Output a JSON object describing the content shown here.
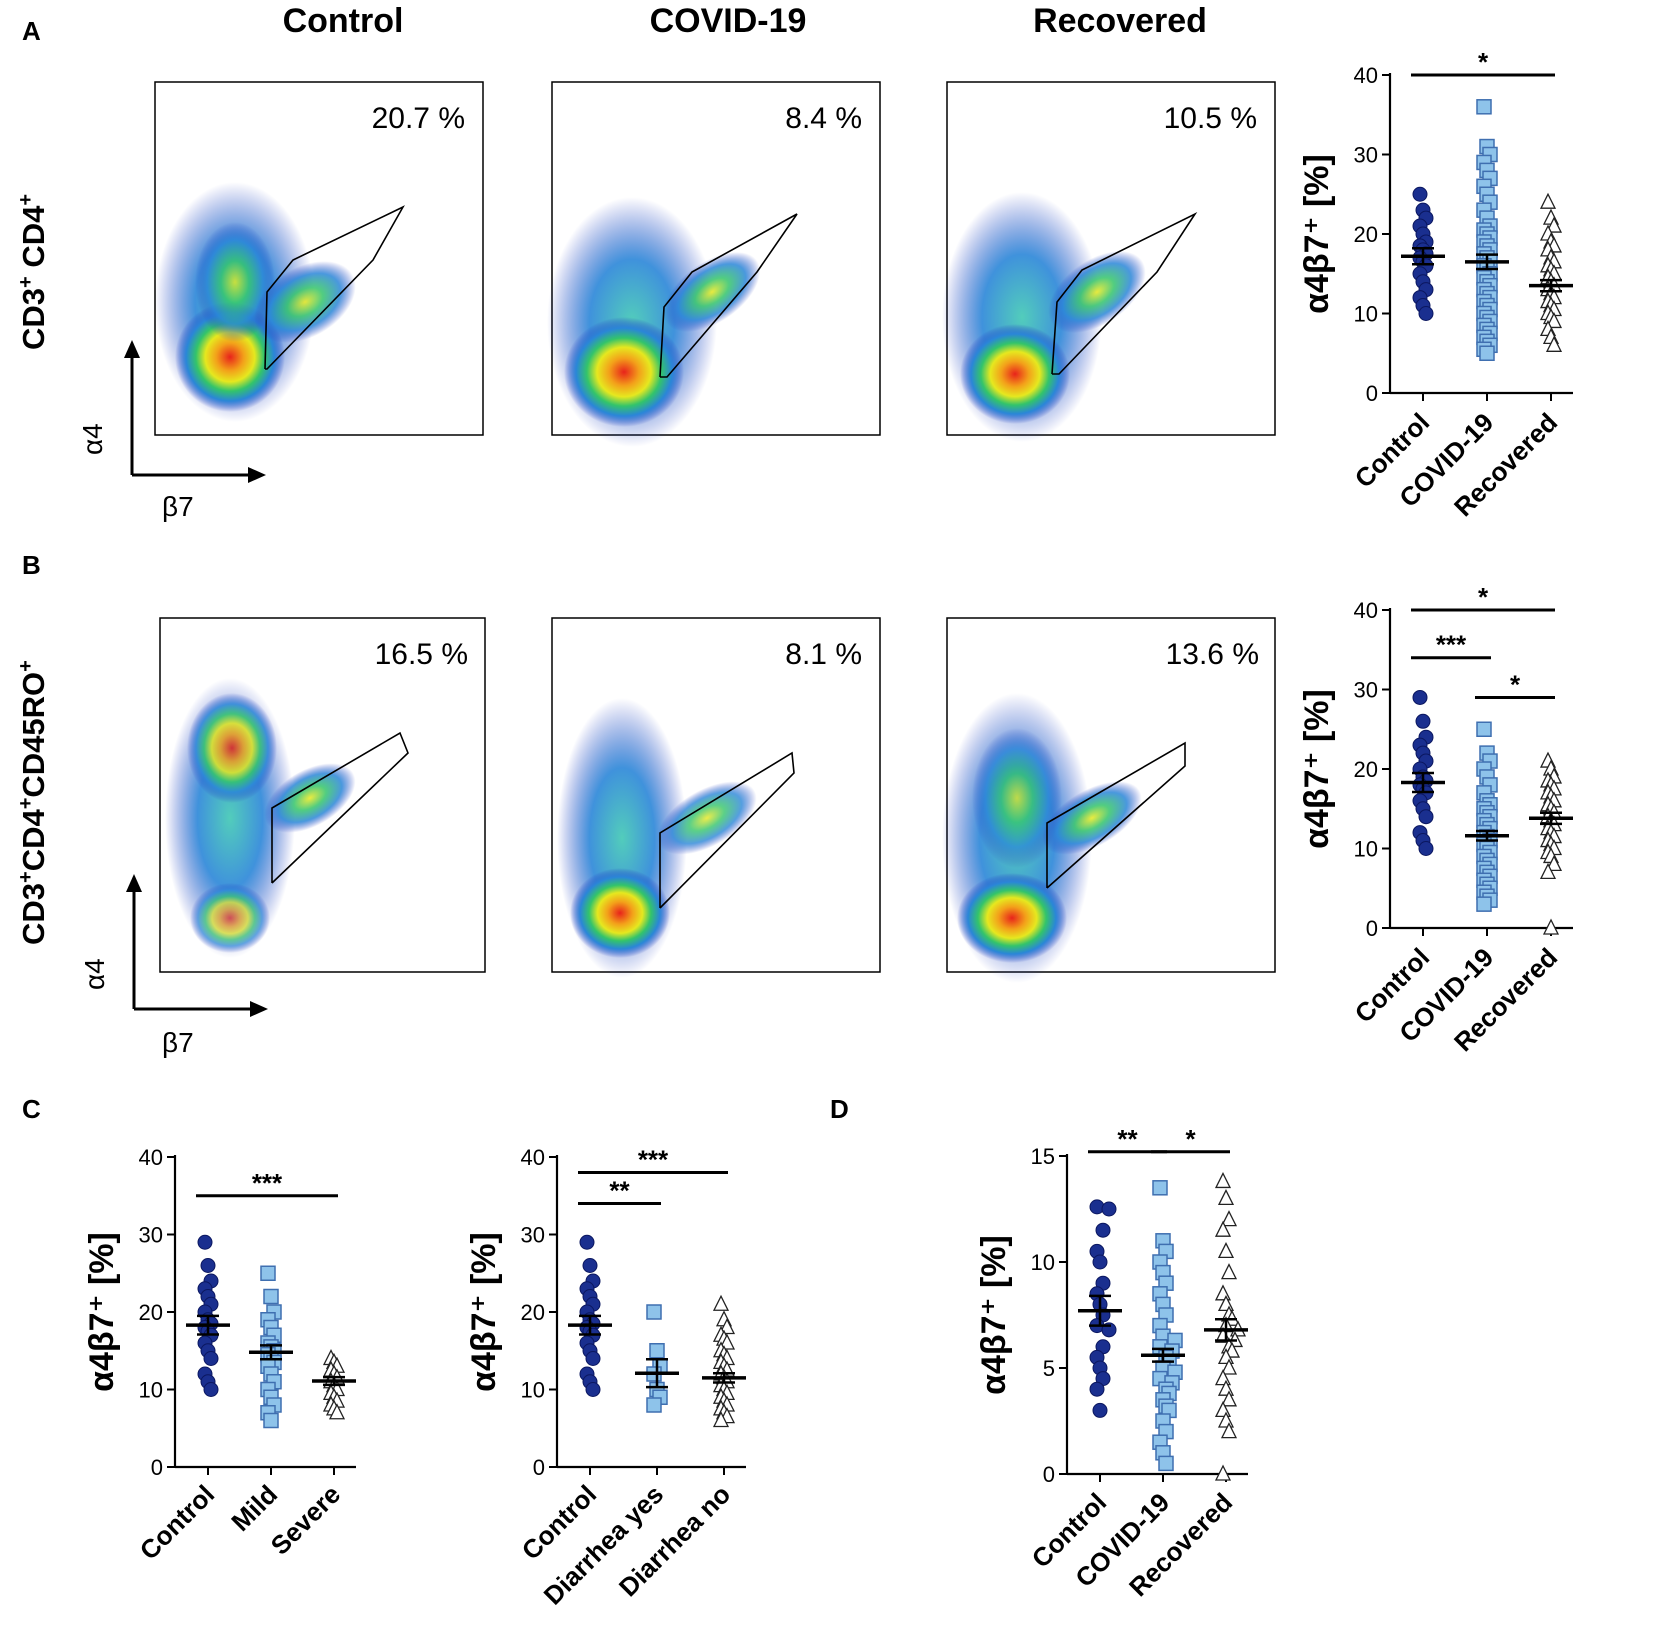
{
  "colors": {
    "control": "#1a2f8f",
    "covid": "#8ec3ea",
    "covid_border": "#3f6fb0",
    "recovered": "#ffffff",
    "axis": "#000000"
  },
  "column_headers": [
    "Control",
    "COVID-19",
    "Recovered"
  ],
  "flow_axis_labels": {
    "y": "α4",
    "x": "β7"
  },
  "panels": {
    "A": {
      "letter": "A",
      "row_label": "CD3",
      "row_label_sup1": "+",
      "row_label_mid": " CD4",
      "row_label_sup2": "+",
      "flow_percentages": [
        "20.7 %",
        "8.4 %",
        "10.5 %"
      ]
    },
    "B": {
      "letter": "B",
      "row_label": "CD3",
      "row_label_sup1": "+",
      "row_label_mid": "CD4",
      "row_label_sup2": "+",
      "row_label_end": "CD45RO",
      "row_label_sup3": "+",
      "flow_percentages": [
        "16.5 %",
        "8.1 %",
        "13.6 %"
      ]
    },
    "C": {
      "letter": "C"
    },
    "D": {
      "letter": "D"
    }
  },
  "chart_data": [
    {
      "id": "A",
      "type": "scatter",
      "ylabel": "α4β7⁺ [%]",
      "ylim": [
        0,
        40
      ],
      "yticks": [
        0,
        10,
        20,
        30,
        40
      ],
      "categories": [
        "Control",
        "COVID-19",
        "Recovered"
      ],
      "series": [
        {
          "name": "Control",
          "marker": "circle",
          "values": [
            25,
            23,
            22,
            21,
            20,
            19,
            18.5,
            18,
            17.5,
            17,
            16.5,
            16,
            15,
            14,
            13,
            12,
            11,
            10
          ],
          "mean": 17.2,
          "sem": 1.0
        },
        {
          "name": "COVID-19",
          "marker": "square",
          "values": [
            36,
            31,
            30,
            29,
            28,
            27,
            26,
            25,
            24,
            23,
            22,
            21,
            20.5,
            20,
            19.5,
            19,
            18.5,
            18,
            17.5,
            17,
            16.5,
            16,
            15.5,
            15,
            14.5,
            14,
            13.5,
            13,
            12.5,
            12,
            11.5,
            11,
            10.5,
            10,
            9.5,
            9,
            8.5,
            8,
            7.5,
            7,
            6.5,
            6,
            5.5,
            5
          ],
          "mean": 16.5,
          "sem": 0.9
        },
        {
          "name": "Recovered",
          "marker": "triangle",
          "values": [
            24,
            22,
            21,
            20,
            19,
            18.5,
            18,
            17,
            16.5,
            16,
            15.5,
            15,
            14.5,
            14,
            13.5,
            13,
            12.5,
            12,
            11.5,
            11,
            10.5,
            10,
            9.5,
            9,
            8,
            7,
            6
          ],
          "mean": 13.5,
          "sem": 0.7
        }
      ],
      "significance": [
        {
          "from": 0,
          "to": 2,
          "label": "*",
          "y": 40
        }
      ]
    },
    {
      "id": "B",
      "type": "scatter",
      "ylabel": "α4β7⁺ [%]",
      "ylim": [
        0,
        40
      ],
      "yticks": [
        0,
        10,
        20,
        30,
        40
      ],
      "categories": [
        "Control",
        "COVID-19",
        "Recovered"
      ],
      "series": [
        {
          "name": "Control",
          "marker": "circle",
          "values": [
            29,
            26,
            24,
            23,
            22,
            21,
            20,
            19,
            18.5,
            18,
            17.5,
            17,
            16,
            15,
            14,
            12,
            11,
            10
          ],
          "mean": 18.3,
          "sem": 1.2
        },
        {
          "name": "COVID-19",
          "marker": "square",
          "values": [
            25,
            22,
            21,
            20,
            19,
            18,
            17,
            16,
            15.5,
            15,
            14.5,
            14,
            13.5,
            13,
            12.5,
            12,
            11.5,
            11,
            10.5,
            10,
            9.5,
            9,
            8.5,
            8,
            7.5,
            7,
            6.5,
            6,
            5.5,
            5,
            4.5,
            4,
            3.5,
            3
          ],
          "mean": 11.6,
          "sem": 0.6
        },
        {
          "name": "Recovered",
          "marker": "triangle",
          "values": [
            21,
            20,
            19,
            18.5,
            18,
            17.5,
            17,
            16.5,
            16,
            15.5,
            15,
            14.5,
            14,
            13.5,
            13,
            12.5,
            12,
            11.5,
            11,
            10.5,
            10,
            9.5,
            9,
            8,
            7,
            0
          ],
          "mean": 13.8,
          "sem": 0.7
        }
      ],
      "significance": [
        {
          "from": 0,
          "to": 2,
          "label": "*",
          "y": 40
        },
        {
          "from": 0,
          "to": 1,
          "label": "***",
          "y": 34
        },
        {
          "from": 1,
          "to": 2,
          "label": "*",
          "y": 29
        }
      ]
    },
    {
      "id": "C1",
      "type": "scatter",
      "ylabel": "α4β7⁺ [%]",
      "ylim": [
        0,
        40
      ],
      "yticks": [
        0,
        10,
        20,
        30,
        40
      ],
      "categories": [
        "Control",
        "Mild",
        "Severe"
      ],
      "series": [
        {
          "name": "Control",
          "marker": "circle",
          "values": [
            29,
            26,
            24,
            23,
            22,
            21,
            20,
            19,
            18.5,
            18,
            17.5,
            17,
            16,
            15,
            14,
            12,
            11,
            10
          ],
          "mean": 18.3,
          "sem": 1.2
        },
        {
          "name": "Mild",
          "marker": "square",
          "values": [
            25,
            22,
            20,
            19,
            18,
            17,
            16,
            15.5,
            15,
            14.5,
            14,
            13.5,
            13,
            12,
            11,
            10,
            9,
            8,
            7,
            6
          ],
          "mean": 14.8,
          "sem": 0.9
        },
        {
          "name": "Severe",
          "marker": "triangle",
          "values": [
            14,
            13.5,
            13,
            12.5,
            12,
            11.5,
            11,
            10.5,
            10,
            9.5,
            9,
            8.5,
            8,
            7.5,
            7
          ],
          "mean": 11.1,
          "sem": 0.5
        }
      ],
      "significance": [
        {
          "from": 0,
          "to": 2,
          "label": "***",
          "y": 35
        }
      ]
    },
    {
      "id": "C2",
      "type": "scatter",
      "ylabel": "α4β7⁺ [%]",
      "ylim": [
        0,
        40
      ],
      "yticks": [
        0,
        10,
        20,
        30,
        40
      ],
      "categories": [
        "Control",
        "Diarrhea yes",
        "Diarrhea no"
      ],
      "series": [
        {
          "name": "Control",
          "marker": "circle",
          "values": [
            29,
            26,
            24,
            23,
            22,
            21,
            20,
            19,
            18.5,
            18,
            17.5,
            17,
            16,
            15,
            14,
            12,
            11,
            10
          ],
          "mean": 18.3,
          "sem": 1.2
        },
        {
          "name": "Diarrhea yes",
          "marker": "square",
          "values": [
            20,
            15,
            13,
            12,
            10,
            9,
            8
          ],
          "mean": 12.1,
          "sem": 1.8
        },
        {
          "name": "Diarrhea no",
          "marker": "triangle",
          "values": [
            21,
            19,
            18,
            17,
            16.5,
            16,
            15,
            14.5,
            14,
            13.5,
            13,
            12.5,
            12,
            11.5,
            11,
            10.5,
            10,
            9.5,
            9,
            8.5,
            8,
            7.5,
            7,
            6.5,
            6
          ],
          "mean": 11.5,
          "sem": 0.6
        }
      ],
      "significance": [
        {
          "from": 0,
          "to": 2,
          "label": "***",
          "y": 38
        },
        {
          "from": 0,
          "to": 1,
          "label": "**",
          "y": 34
        }
      ]
    },
    {
      "id": "D",
      "type": "scatter",
      "ylabel": "α4β7⁺ [%]",
      "ylim": [
        0,
        15
      ],
      "yticks": [
        0,
        5,
        10,
        15
      ],
      "categories": [
        "Control",
        "COVID-19",
        "Recovered"
      ],
      "series": [
        {
          "name": "Control",
          "marker": "circle",
          "values": [
            12.6,
            12.5,
            11.5,
            10.5,
            10,
            9,
            8.5,
            8,
            7.5,
            7,
            6.8,
            6,
            5.5,
            5,
            4.5,
            4,
            3
          ],
          "mean": 7.7,
          "sem": 0.7
        },
        {
          "name": "COVID-19",
          "marker": "square",
          "values": [
            13.5,
            11,
            10.5,
            10,
            9.5,
            9,
            8.5,
            8,
            7.5,
            7,
            6.5,
            6.3,
            6,
            5.8,
            5.5,
            5.3,
            5,
            4.8,
            4.5,
            4.3,
            4,
            3.8,
            3.5,
            3.2,
            3,
            2.5,
            2,
            1.5,
            1,
            0.5
          ],
          "mean": 5.6,
          "sem": 0.3
        },
        {
          "name": "Recovered",
          "marker": "triangle",
          "values": [
            13.8,
            13,
            12,
            11.5,
            10.5,
            9.5,
            8.5,
            8,
            7.5,
            7.3,
            7,
            6.8,
            6.5,
            6.3,
            6,
            5.8,
            5.5,
            5,
            4.5,
            4,
            3.5,
            3,
            2.5,
            2,
            0
          ],
          "mean": 6.8,
          "sem": 0.5
        }
      ],
      "significance": [
        {
          "from": 0,
          "to": 1,
          "label": "**",
          "y": 15.2
        },
        {
          "from": 1,
          "to": 2,
          "label": "*",
          "y": 15.2
        }
      ]
    }
  ]
}
